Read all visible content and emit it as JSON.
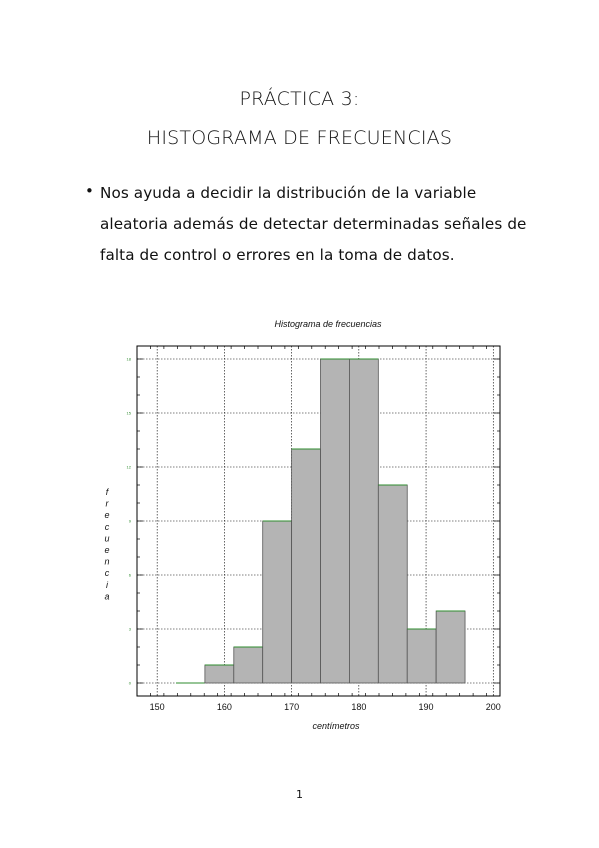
{
  "document": {
    "title_line1": "PRÁCTICA 3:",
    "title_line2": "HISTOGRAMA DE FRECUENCIAS",
    "bullet_text": "Nos ayuda a decidir la distribución de la variable aleatoria además de detectar determinadas señales de falta de control o errores en la toma de datos.",
    "page_number": "1"
  },
  "chart_data": {
    "type": "bar",
    "title": "Histograma de frecuencias",
    "xlabel": "centímetros",
    "ylabel": "frecuencia",
    "xlim": [
      147,
      201
    ],
    "ylim": [
      0,
      18
    ],
    "xticks": [
      150,
      160,
      170,
      180,
      190,
      200
    ],
    "yticks": [
      0,
      3,
      6,
      9,
      12,
      15,
      18
    ],
    "grid": true,
    "bin_edges": [
      152.8,
      157.1,
      161.4,
      165.7,
      170.0,
      174.3,
      178.6,
      182.9,
      187.2,
      191.5,
      195.8
    ],
    "values": [
      0,
      1,
      2,
      9,
      13,
      18,
      18,
      11,
      3,
      4
    ],
    "colors": {
      "bar_fill": "#b4b4b4",
      "bar_edge": "#2e8b2e",
      "tick_label_y": "#2e8b2e"
    }
  }
}
